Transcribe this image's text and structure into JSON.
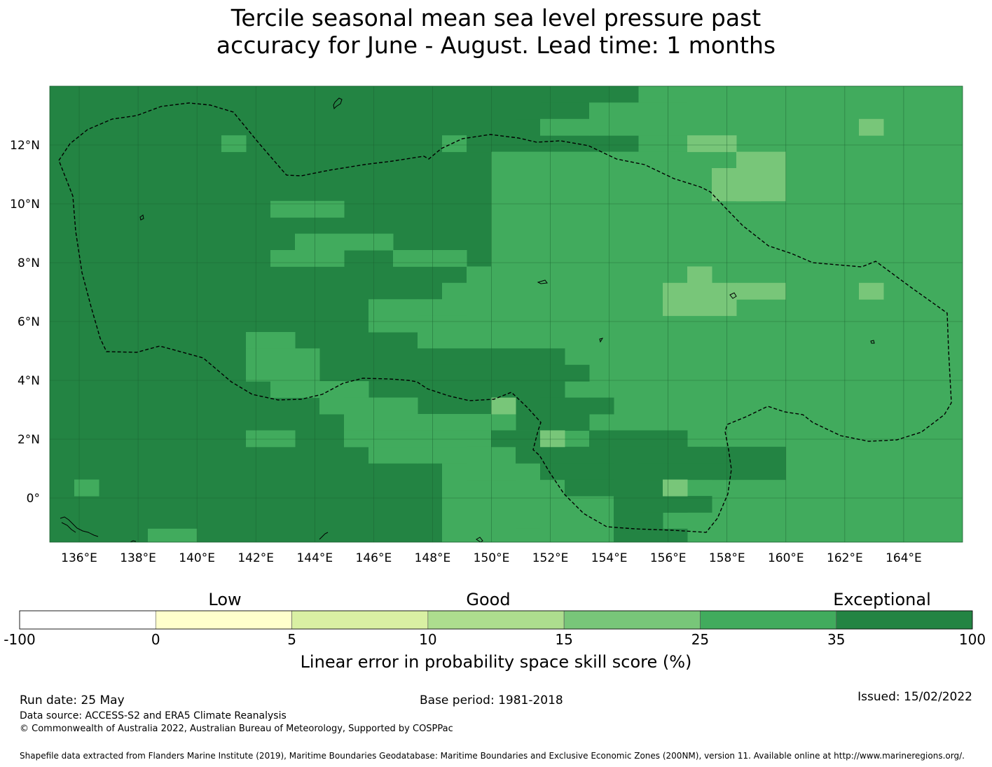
{
  "title_lines": [
    "Tercile seasonal mean sea level pressure past",
    "accuracy for June - August. Lead time: 1 months"
  ],
  "map": {
    "lon_range": [
      135,
      166
    ],
    "lat_range": [
      -1.5,
      14
    ],
    "cell_size_deg": 0.83,
    "lon_ticks": [
      {
        "value": 136,
        "label": "136°E"
      },
      {
        "value": 138,
        "label": "138°E"
      },
      {
        "value": 140,
        "label": "140°E"
      },
      {
        "value": 142,
        "label": "142°E"
      },
      {
        "value": 144,
        "label": "144°E"
      },
      {
        "value": 146,
        "label": "146°E"
      },
      {
        "value": 148,
        "label": "148°E"
      },
      {
        "value": 150,
        "label": "150°E"
      },
      {
        "value": 152,
        "label": "152°E"
      },
      {
        "value": 154,
        "label": "154°E"
      },
      {
        "value": 156,
        "label": "156°E"
      },
      {
        "value": 158,
        "label": "158°E"
      },
      {
        "value": 160,
        "label": "160°E"
      },
      {
        "value": 162,
        "label": "162°E"
      },
      {
        "value": 164,
        "label": "164°E"
      }
    ],
    "lat_ticks": [
      {
        "value": 12,
        "label": "12°N"
      },
      {
        "value": 10,
        "label": "10°N"
      },
      {
        "value": 8,
        "label": "8°N"
      },
      {
        "value": 6,
        "label": "6°N"
      },
      {
        "value": 4,
        "label": "4°N"
      },
      {
        "value": 2,
        "label": "2°N"
      },
      {
        "value": 0,
        "label": "0°"
      }
    ],
    "colors": {
      "dark": "#238443",
      "medium": "#41ab5d",
      "light": "#78c679",
      "grid": "#1a5e2e"
    }
  },
  "colorbar": {
    "category_labels": [
      {
        "text": "Low",
        "at": 1.5
      },
      {
        "text": "Good",
        "at": 3.5
      },
      {
        "text": "Exceptional",
        "at": 6.35
      }
    ],
    "boundaries": [
      "-100",
      "0",
      "5",
      "10",
      "15",
      "25",
      "35",
      "100"
    ],
    "colors": [
      "#ffffff",
      "#ffffcc",
      "#d9f0a3",
      "#addd8e",
      "#78c679",
      "#41ab5d",
      "#238443"
    ],
    "label": "Linear error in probability space skill score (%)"
  },
  "footer": {
    "run_date": "Run date: 25 May",
    "base_period": "Base period: 1981-2018",
    "issued": "Issued: 15/02/2022",
    "data_source": "Data source: ACCESS-S2 and ERA5 Climate Reanalysis",
    "copyright": "© Commonwealth of Australia 2022, Australian Bureau of Meteorology, Supported by COSPPac",
    "shapefile": "Shapefile data extracted from Flanders Marine Institute (2019), Maritime Boundaries Geodatabase: Maritime Boundaries and Exclusive Economic Zones (200NM), version 11. Available online at http://www.marineregions.org/."
  }
}
